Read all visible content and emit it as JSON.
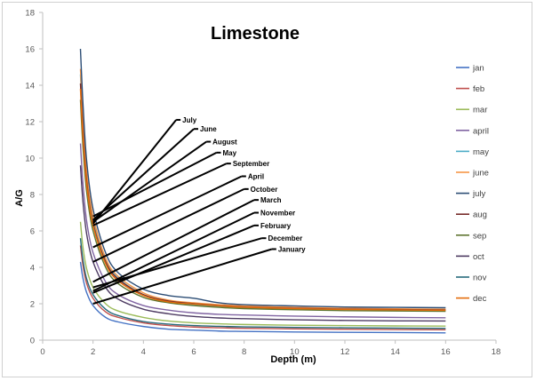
{
  "chart_data": {
    "type": "line",
    "title": "Limestone",
    "xlabel": "Depth (m)",
    "ylabel": "A/G",
    "xlim": [
      0,
      18
    ],
    "ylim": [
      0,
      18
    ],
    "xticks": [
      0,
      2,
      4,
      6,
      8,
      10,
      12,
      14,
      16,
      18
    ],
    "yticks": [
      0,
      2,
      4,
      6,
      8,
      10,
      12,
      14,
      16,
      18
    ],
    "x": [
      1.5,
      1.6,
      1.75,
      2,
      2.5,
      3,
      4,
      5,
      6,
      7,
      8,
      10,
      12,
      14,
      16
    ],
    "series": [
      {
        "name": "jan",
        "color": "#4472c4",
        "values": [
          4.3,
          3.4,
          2.6,
          1.9,
          1.25,
          1.0,
          0.75,
          0.6,
          0.55,
          0.5,
          0.48,
          0.45,
          0.43,
          0.42,
          0.4
        ]
      },
      {
        "name": "feb",
        "color": "#c0504d",
        "values": [
          5.2,
          4.1,
          3.1,
          2.3,
          1.55,
          1.25,
          0.95,
          0.8,
          0.72,
          0.68,
          0.65,
          0.62,
          0.6,
          0.58,
          0.57
        ]
      },
      {
        "name": "mar",
        "color": "#9bbb59",
        "values": [
          6.5,
          5.1,
          3.9,
          2.9,
          2.0,
          1.6,
          1.25,
          1.05,
          0.95,
          0.9,
          0.86,
          0.82,
          0.8,
          0.78,
          0.77
        ]
      },
      {
        "name": "april",
        "color": "#8064a2",
        "values": [
          10.8,
          8.6,
          6.5,
          4.8,
          3.2,
          2.5,
          1.9,
          1.65,
          1.5,
          1.42,
          1.38,
          1.32,
          1.28,
          1.25,
          1.23
        ]
      },
      {
        "name": "may",
        "color": "#4bacc6",
        "values": [
          14.6,
          11.8,
          9.0,
          6.6,
          4.4,
          3.4,
          2.5,
          2.15,
          1.95,
          1.85,
          1.78,
          1.72,
          1.68,
          1.65,
          1.63
        ]
      },
      {
        "name": "june",
        "color": "#f79646",
        "values": [
          14.9,
          12.0,
          9.2,
          6.8,
          4.5,
          3.5,
          2.6,
          2.2,
          2.05,
          1.95,
          1.88,
          1.8,
          1.75,
          1.72,
          1.7
        ]
      },
      {
        "name": "july",
        "color": "#2c4d75",
        "values": [
          16.0,
          13.0,
          9.8,
          7.2,
          4.8,
          3.7,
          2.8,
          2.45,
          2.3,
          2.05,
          1.95,
          1.88,
          1.82,
          1.8,
          1.78
        ]
      },
      {
        "name": "aug",
        "color": "#772c2a",
        "values": [
          14.1,
          11.4,
          8.7,
          6.4,
          4.3,
          3.35,
          2.5,
          2.15,
          2.0,
          1.9,
          1.82,
          1.75,
          1.7,
          1.68,
          1.66
        ]
      },
      {
        "name": "sep",
        "color": "#5f7530",
        "values": [
          13.2,
          10.6,
          8.1,
          6.0,
          4.0,
          3.1,
          2.35,
          2.05,
          1.9,
          1.8,
          1.73,
          1.67,
          1.62,
          1.6,
          1.58
        ]
      },
      {
        "name": "oct",
        "color": "#4d3b62",
        "values": [
          9.6,
          7.6,
          5.8,
          4.3,
          2.9,
          2.25,
          1.7,
          1.45,
          1.3,
          1.22,
          1.18,
          1.12,
          1.08,
          1.06,
          1.05
        ]
      },
      {
        "name": "nov",
        "color": "#276a7c",
        "values": [
          5.6,
          4.4,
          3.35,
          2.5,
          1.7,
          1.35,
          1.02,
          0.88,
          0.8,
          0.76,
          0.73,
          0.7,
          0.68,
          0.66,
          0.65
        ]
      },
      {
        "name": "dec",
        "color": "#e36c09",
        "values": [
          13.8,
          11.1,
          8.5,
          6.3,
          4.2,
          3.25,
          2.45,
          2.1,
          1.98,
          1.88,
          1.8,
          1.73,
          1.68,
          1.66,
          1.64
        ]
      }
    ],
    "annotations": [
      {
        "label": "July",
        "from": [
          2.0,
          6.4
        ],
        "to": [
          5.3,
          12.1
        ]
      },
      {
        "label": "June",
        "from": [
          2.0,
          6.6
        ],
        "to": [
          6.0,
          11.6
        ]
      },
      {
        "label": "August",
        "from": [
          2.0,
          6.5
        ],
        "to": [
          6.5,
          10.9
        ]
      },
      {
        "label": "May",
        "from": [
          2.0,
          6.8
        ],
        "to": [
          6.9,
          10.3
        ]
      },
      {
        "label": "September",
        "from": [
          2.0,
          6.3
        ],
        "to": [
          7.3,
          9.7
        ]
      },
      {
        "label": "April",
        "from": [
          2.0,
          5.1
        ],
        "to": [
          7.9,
          9.0
        ]
      },
      {
        "label": "October",
        "from": [
          2.0,
          4.3
        ],
        "to": [
          8.0,
          8.3
        ]
      },
      {
        "label": "March",
        "from": [
          2.0,
          3.2
        ],
        "to": [
          8.4,
          7.7
        ]
      },
      {
        "label": "November",
        "from": [
          2.0,
          2.7
        ],
        "to": [
          8.4,
          7.0
        ]
      },
      {
        "label": "February",
        "from": [
          2.0,
          2.6
        ],
        "to": [
          8.4,
          6.3
        ]
      },
      {
        "label": "December",
        "from": [
          2.0,
          2.9
        ],
        "to": [
          8.7,
          5.6
        ]
      },
      {
        "label": "January",
        "from": [
          2.0,
          2.0
        ],
        "to": [
          9.1,
          5.0
        ]
      }
    ],
    "legend_position": "right",
    "grid": false
  }
}
